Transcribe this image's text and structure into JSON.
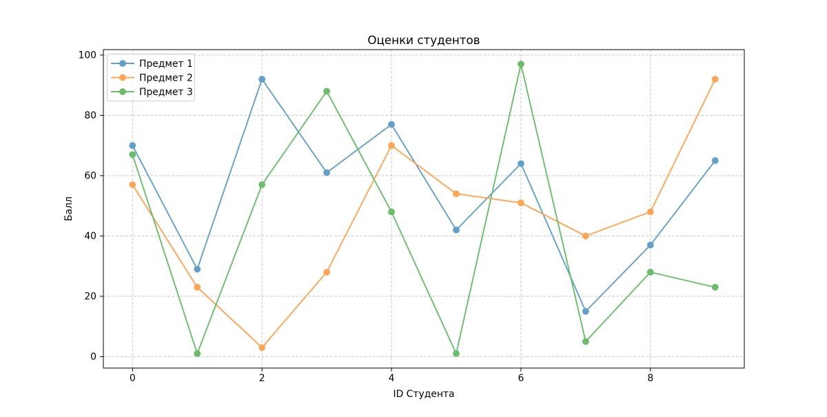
{
  "title": "Оценки студентов",
  "chart_data": {
    "type": "line",
    "title": "Оценки студентов",
    "xlabel": "ID Студента",
    "ylabel": "Балл",
    "x": [
      0,
      1,
      2,
      3,
      4,
      5,
      6,
      7,
      8,
      9
    ],
    "series": [
      {
        "name": "Предмет 1",
        "color": "#1f77b4",
        "values": [
          70,
          29,
          92,
          61,
          77,
          42,
          64,
          15,
          37,
          65
        ]
      },
      {
        "name": "Предмет 2",
        "color": "#ff7f0e",
        "values": [
          57,
          23,
          3,
          28,
          70,
          54,
          51,
          40,
          48,
          92
        ]
      },
      {
        "name": "Предмет 3",
        "color": "#2ca02c",
        "values": [
          67,
          1,
          57,
          88,
          48,
          1,
          97,
          5,
          28,
          23
        ]
      }
    ],
    "series_opacity": 0.7,
    "xticks": [
      0,
      2,
      4,
      6,
      8
    ],
    "yticks": [
      0,
      20,
      40,
      60,
      80,
      100
    ],
    "xlim": [
      -0.45,
      9.45
    ],
    "ylim": [
      -3.8,
      101.8
    ],
    "grid": {
      "on": true,
      "linestyle": "dashed",
      "color": "#c8c8c8"
    },
    "legend": {
      "position": "upper left",
      "labels": [
        "Предмет 1",
        "Предмет 2",
        "Предмет 3"
      ]
    }
  }
}
